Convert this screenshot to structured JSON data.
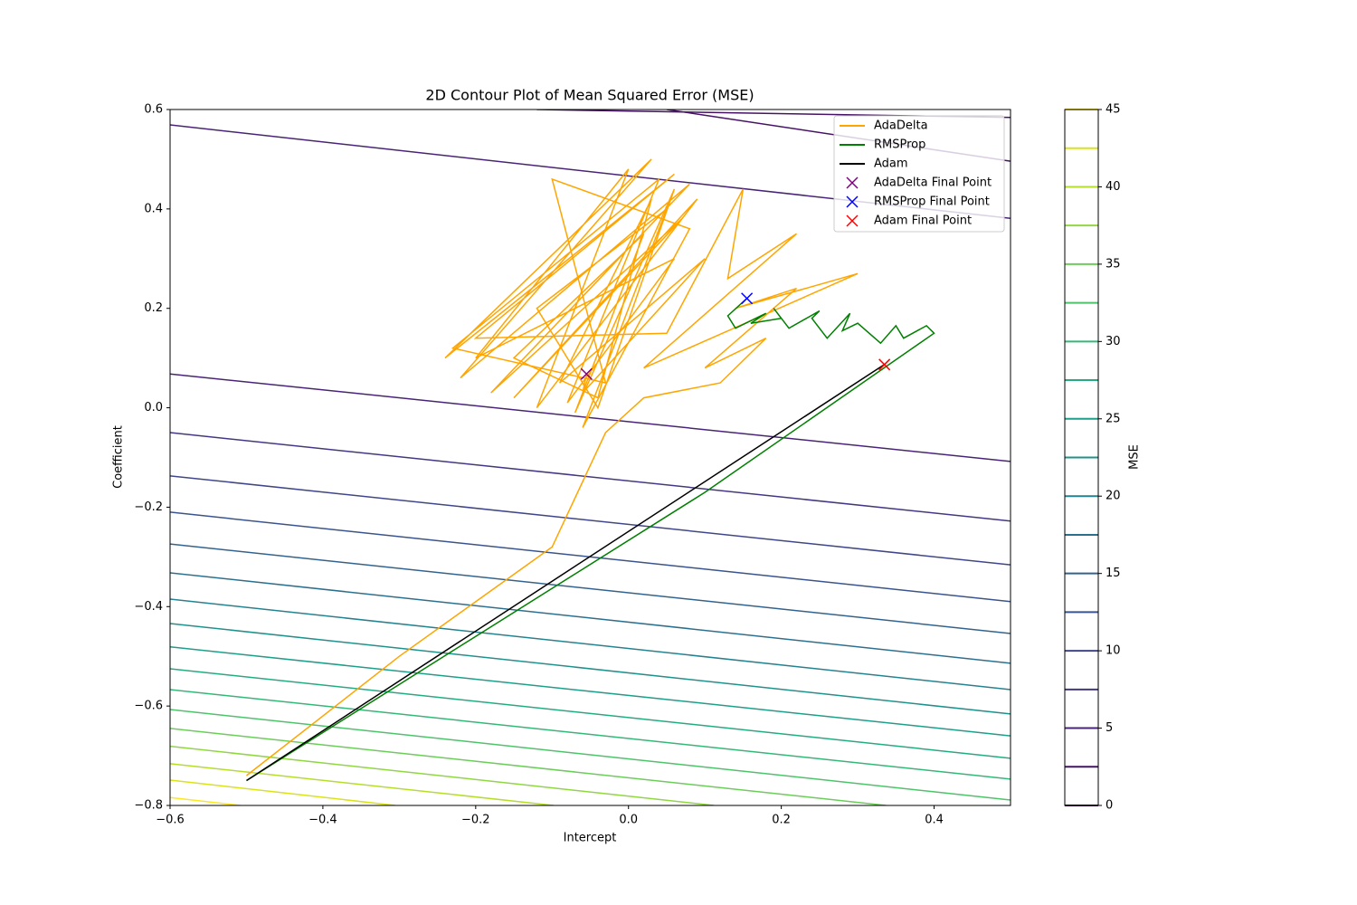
{
  "chart_data": {
    "type": "contour",
    "title": "2D Contour Plot of Mean Squared Error (MSE)",
    "xlabel": "Intercept",
    "ylabel": "Coefficient",
    "xlim": [
      -0.6,
      0.5
    ],
    "ylim": [
      -0.8,
      0.6
    ],
    "xticks": [
      {
        "value": -0.6,
        "label": "−0.6"
      },
      {
        "value": -0.4,
        "label": "−0.4"
      },
      {
        "value": -0.2,
        "label": "−0.2"
      },
      {
        "value": 0,
        "label": "0.0"
      },
      0.2,
      0.4
    ],
    "yticks": [
      {
        "value": -0.8,
        "label": "−0.8"
      },
      {
        "value": -0.6,
        "label": "−0.6"
      },
      {
        "value": -0.4,
        "label": "−0.4"
      },
      {
        "value": -0.2,
        "label": "−0.2"
      },
      {
        "value": 0,
        "label": "0.0"
      },
      0.2,
      0.4,
      0.6
    ],
    "colorbar": {
      "label": "MSE",
      "lim": [
        0,
        45
      ],
      "ticks": [
        0,
        5,
        10,
        15,
        20,
        25,
        30,
        35,
        40,
        45
      ],
      "levels": [
        0,
        2.5,
        5,
        7.5,
        10,
        12.5,
        15,
        17.5,
        20,
        22.5,
        25,
        27.5,
        30,
        32.5,
        35,
        37.5,
        40,
        42.5,
        45
      ],
      "colors": [
        "#440154",
        "#471365",
        "#482475",
        "#453781",
        "#404688",
        "#3a548c",
        "#33638d",
        "#2d708e",
        "#26828e",
        "#21918c",
        "#1f9e89",
        "#25ab82",
        "#35b779",
        "#4ec36b",
        "#6ccd5a",
        "#90d743",
        "#b5de2b",
        "#dae319",
        "#fde725"
      ]
    },
    "contours": [
      {
        "level": 2.5,
        "x": [
          -0.12,
          0.5
        ],
        "y": [
          0.6,
          0.584
        ]
      },
      {
        "level": 2.5,
        "x": [
          0.05,
          0.5
        ],
        "y": [
          0.6,
          0.496
        ]
      },
      {
        "level": 5,
        "x": [
          -0.6,
          0.5
        ],
        "y": [
          0.569,
          0.381
        ]
      },
      {
        "level": 5,
        "x": [
          -0.6,
          0.5
        ],
        "y": [
          0.068,
          -0.108
        ]
      },
      {
        "level": 7.5,
        "x": [
          -0.6,
          0.5
        ],
        "y": [
          -0.05,
          -0.228
        ]
      },
      {
        "level": 10,
        "x": [
          -0.6,
          0.5
        ],
        "y": [
          -0.137,
          -0.316
        ]
      },
      {
        "level": 12.5,
        "x": [
          -0.6,
          0.5
        ],
        "y": [
          -0.21,
          -0.39
        ]
      },
      {
        "level": 15,
        "x": [
          -0.6,
          0.5
        ],
        "y": [
          -0.274,
          -0.454
        ]
      },
      {
        "level": 17.5,
        "x": [
          -0.6,
          0.5
        ],
        "y": [
          -0.332,
          -0.514
        ]
      },
      {
        "level": 20,
        "x": [
          -0.6,
          0.5
        ],
        "y": [
          -0.385,
          -0.567
        ]
      },
      {
        "level": 22.5,
        "x": [
          -0.6,
          0.5
        ],
        "y": [
          -0.434,
          -0.616
        ]
      },
      {
        "level": 25,
        "x": [
          -0.6,
          0.5
        ],
        "y": [
          -0.481,
          -0.66
        ]
      },
      {
        "level": 27.5,
        "x": [
          -0.6,
          0.5
        ],
        "y": [
          -0.525,
          -0.705
        ]
      },
      {
        "level": 30,
        "x": [
          -0.6,
          0.5
        ],
        "y": [
          -0.567,
          -0.747
        ]
      },
      {
        "level": 32.5,
        "x": [
          -0.6,
          0.5
        ],
        "y": [
          -0.607,
          -0.789
        ]
      },
      {
        "level": 35,
        "x": [
          -0.6,
          0.337
        ],
        "y": [
          -0.645,
          -0.8
        ]
      },
      {
        "level": 37.5,
        "x": [
          -0.6,
          0.112
        ],
        "y": [
          -0.681,
          -0.8
        ]
      },
      {
        "level": 40,
        "x": [
          -0.6,
          -0.098
        ],
        "y": [
          -0.716,
          -0.8
        ]
      },
      {
        "level": 42.5,
        "x": [
          -0.6,
          -0.305
        ],
        "y": [
          -0.749,
          -0.8
        ]
      },
      {
        "level": 45,
        "x": [
          -0.6,
          -0.508
        ],
        "y": [
          -0.784,
          -0.8
        ]
      }
    ],
    "series": [
      {
        "name": "AdaDelta",
        "color": "#ffa500",
        "x": [
          -0.5,
          -0.3,
          -0.1,
          -0.03,
          0.02,
          0.12,
          0.18,
          0.1,
          0.22,
          0.14,
          0.3,
          0.02,
          0.22,
          0.13,
          0.15,
          0.05,
          -0.2,
          0.06,
          -0.24,
          0.03,
          -0.22,
          0.08,
          -0.18,
          0.07,
          -0.15,
          0.09,
          -0.12,
          0.0,
          -0.2,
          0.06,
          -0.08,
          0.04,
          -0.23,
          -0.03,
          -0.1,
          0.08,
          -0.06,
          0.05,
          -0.12,
          -0.04,
          0.06,
          -0.07,
          0.02,
          -0.15,
          -0.04,
          0.03,
          -0.09,
          0.1,
          -0.06,
          -0.055
        ],
        "y": [
          -0.74,
          -0.5,
          -0.28,
          -0.05,
          0.02,
          0.05,
          0.14,
          0.08,
          0.24,
          0.2,
          0.27,
          0.08,
          0.35,
          0.26,
          0.44,
          0.15,
          0.14,
          0.47,
          0.1,
          0.5,
          0.06,
          0.45,
          0.03,
          0.38,
          0.02,
          0.42,
          0.0,
          0.48,
          0.1,
          0.3,
          0.01,
          0.46,
          0.12,
          0.05,
          0.46,
          0.36,
          -0.04,
          0.4,
          0.2,
          0.0,
          0.44,
          -0.01,
          0.35,
          0.1,
          0.02,
          0.42,
          0.05,
          0.3,
          0.03,
          0.068
        ]
      },
      {
        "name": "RMSProp",
        "color": "#008000",
        "x": [
          -0.5,
          -0.2,
          0.1,
          0.4,
          0.39,
          0.36,
          0.35,
          0.33,
          0.3,
          0.28,
          0.29,
          0.26,
          0.24,
          0.25,
          0.21,
          0.19,
          0.2,
          0.16,
          0.18,
          0.14,
          0.13,
          0.155
        ],
        "y": [
          -0.75,
          -0.46,
          -0.17,
          0.15,
          0.165,
          0.14,
          0.165,
          0.13,
          0.17,
          0.155,
          0.19,
          0.14,
          0.18,
          0.195,
          0.16,
          0.2,
          0.18,
          0.17,
          0.19,
          0.16,
          0.185,
          0.22
        ]
      },
      {
        "name": "Adam",
        "color": "#000000",
        "x": [
          -0.5,
          0.335
        ],
        "y": [
          -0.75,
          0.087
        ]
      }
    ],
    "final_points": [
      {
        "name": "AdaDelta Final Point",
        "color": "#800080",
        "x": -0.055,
        "y": 0.068
      },
      {
        "name": "RMSProp Final Point",
        "color": "#0000ff",
        "x": 0.155,
        "y": 0.22
      },
      {
        "name": "Adam Final Point",
        "color": "#ff0000",
        "x": 0.335,
        "y": 0.087
      }
    ],
    "legend": "upper right"
  }
}
